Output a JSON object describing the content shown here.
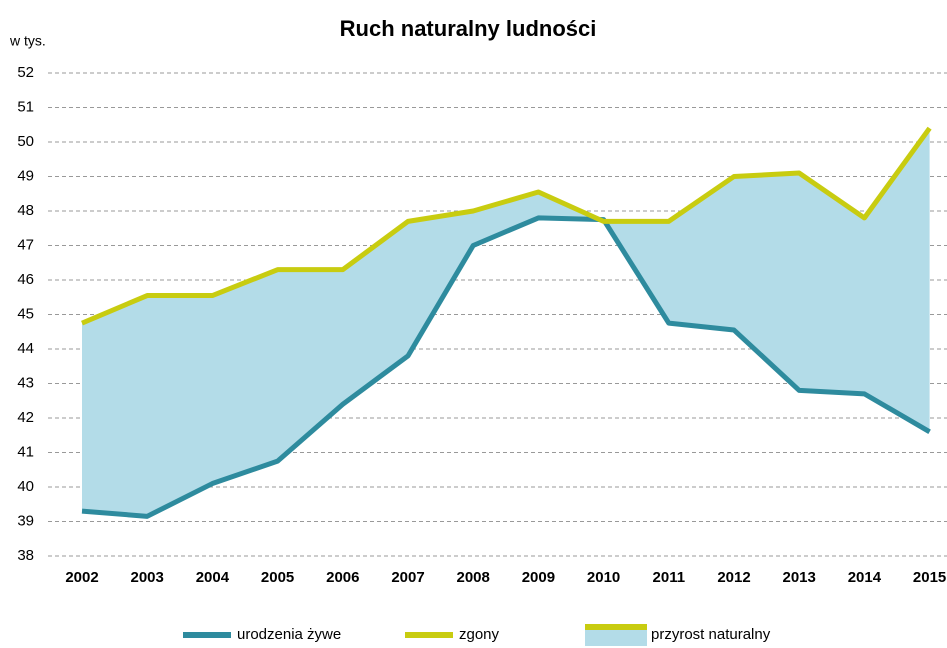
{
  "chart_data": {
    "type": "line",
    "title": "Ruch naturalny ludności",
    "y_unit": "w tys.",
    "categories": [
      "2002",
      "2003",
      "2004",
      "2005",
      "2006",
      "2007",
      "2008",
      "2009",
      "2010",
      "2011",
      "2012",
      "2013",
      "2014",
      "2015"
    ],
    "series": [
      {
        "name": "urodzenia żywe",
        "color": "#2e8b9e",
        "values": [
          39.3,
          39.15,
          40.1,
          40.75,
          42.4,
          43.8,
          47.0,
          47.8,
          47.75,
          44.75,
          44.55,
          42.8,
          42.7,
          41.6
        ]
      },
      {
        "name": "zgony",
        "color": "#c8cc10",
        "values": [
          44.75,
          45.55,
          45.55,
          46.3,
          46.3,
          47.7,
          48.0,
          48.55,
          47.7,
          47.7,
          49.0,
          49.1,
          47.8,
          50.4
        ]
      }
    ],
    "area": {
      "name": "przyrost naturalny",
      "color": "#b3dce8",
      "line_color": "#c8cc10",
      "upper": 1,
      "lower": 0
    },
    "ylim": [
      38,
      52
    ],
    "yticks": [
      38,
      39,
      40,
      41,
      42,
      43,
      44,
      45,
      46,
      47,
      48,
      49,
      50,
      51,
      52
    ],
    "grid": true
  }
}
